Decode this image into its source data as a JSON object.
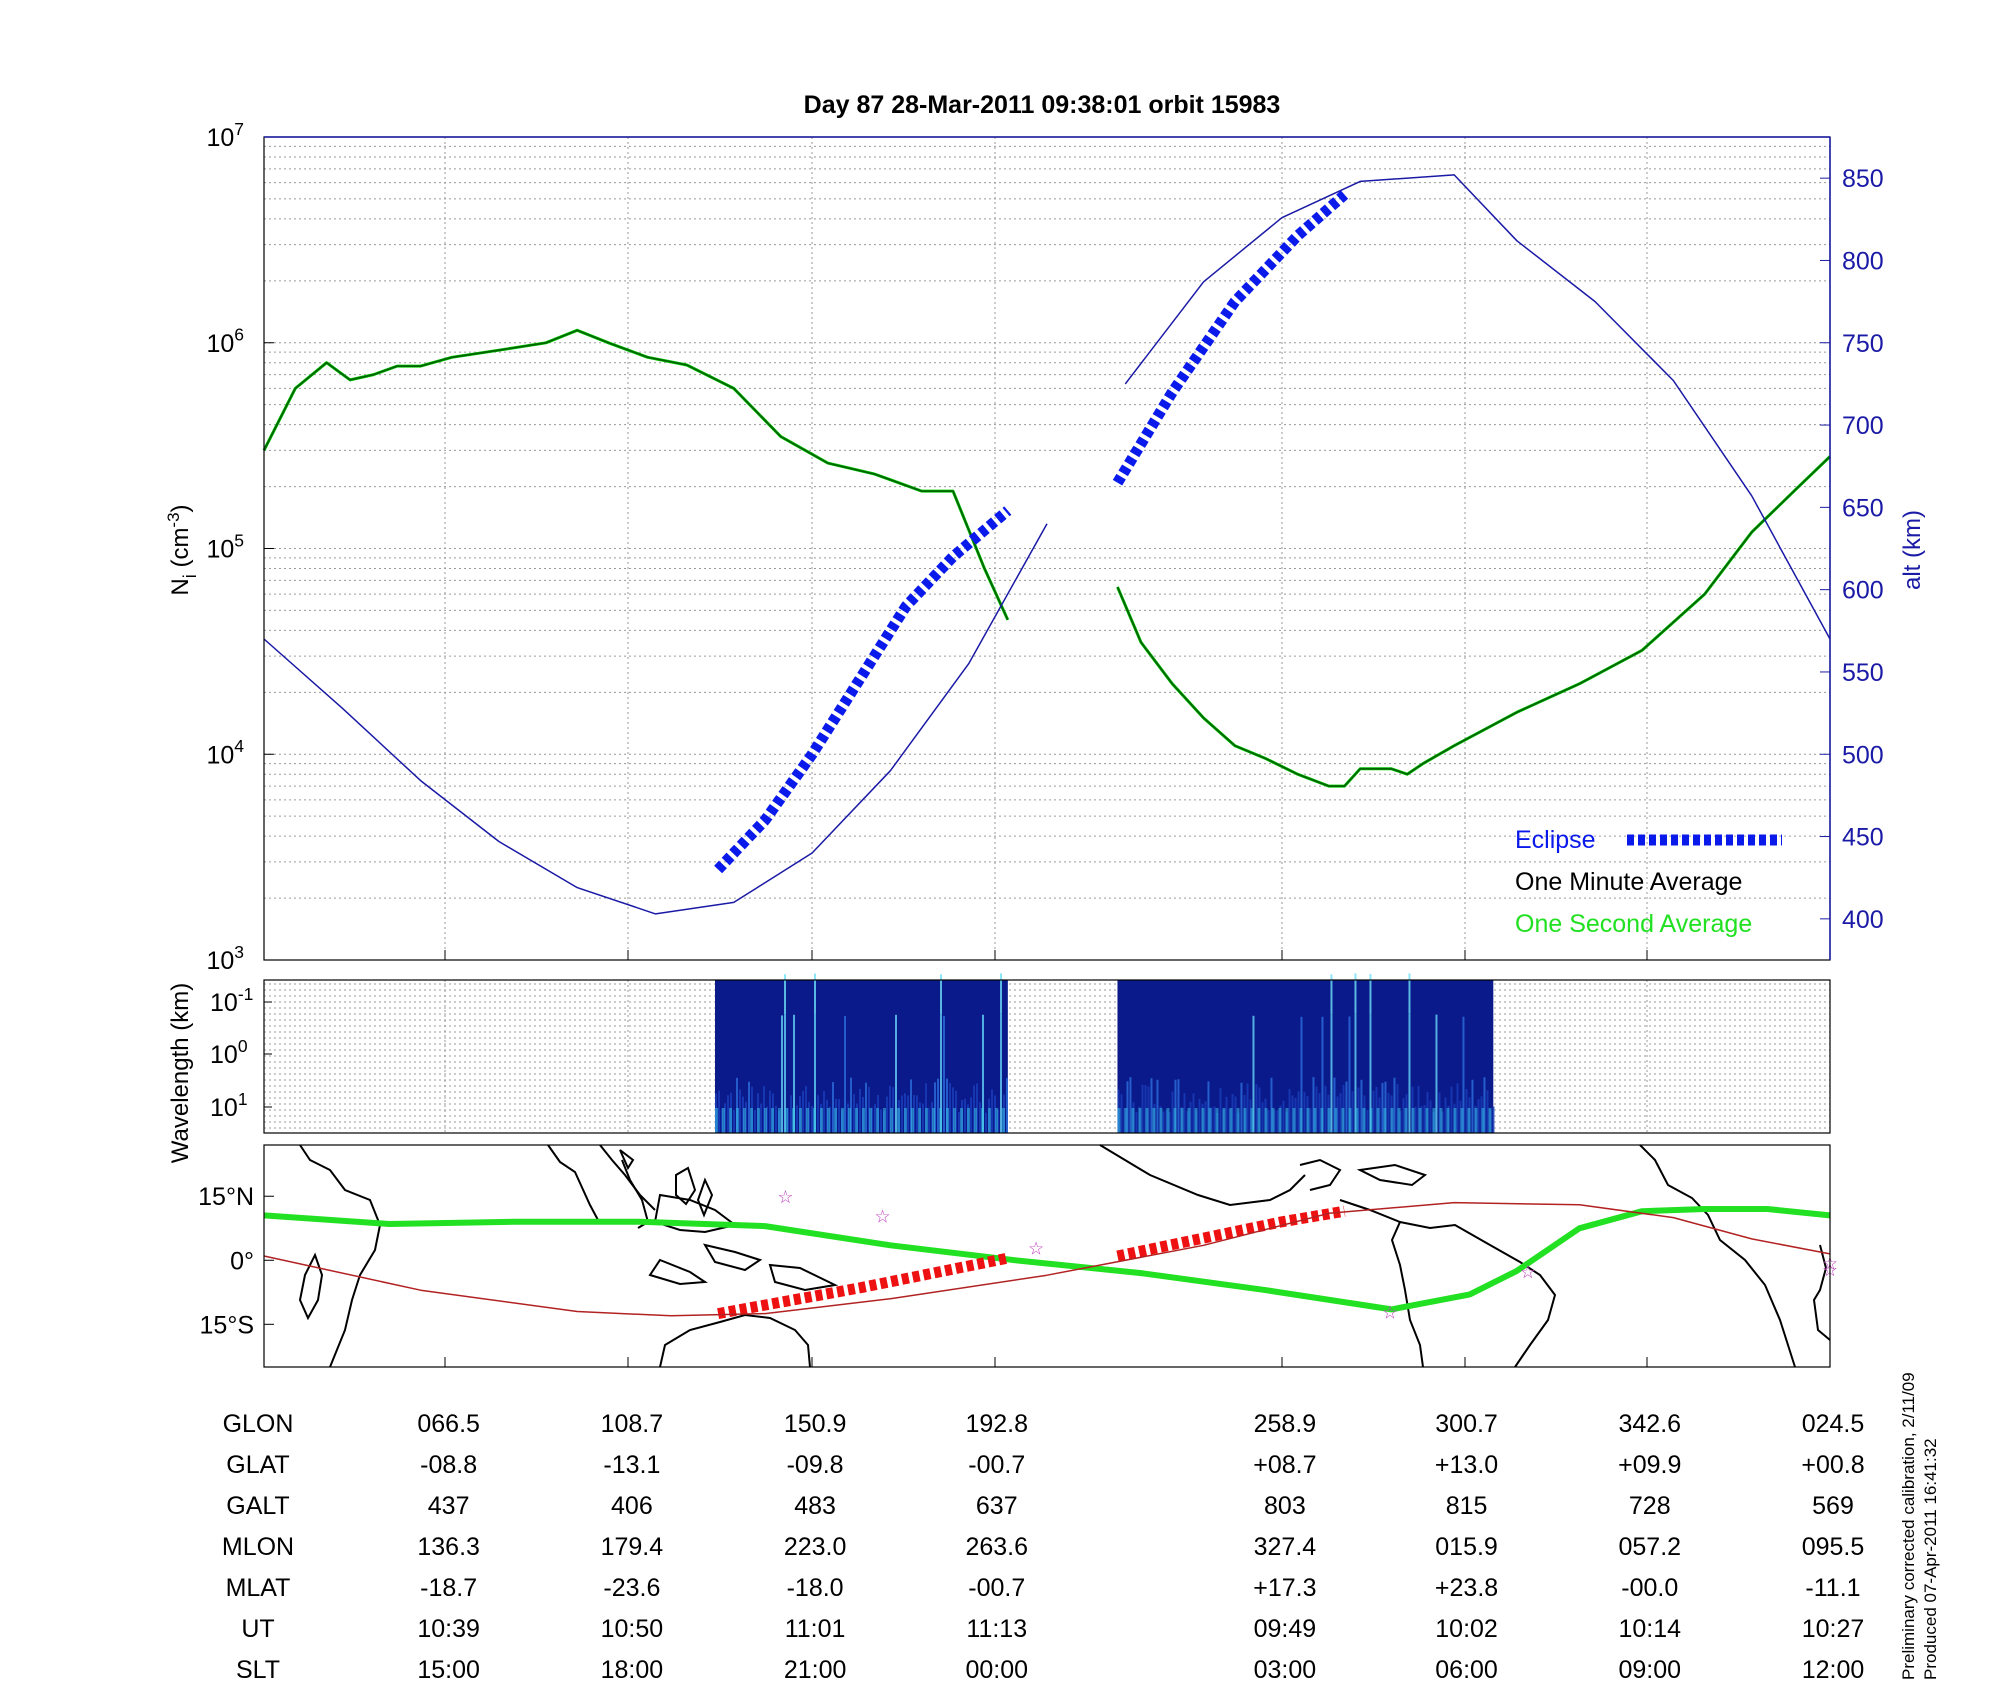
{
  "title": "Day 87  28-Mar-2011 09:38:01   orbit 15983",
  "colors": {
    "density": "#006400",
    "density_raw": "#00cc00",
    "altitude": "#1a1aa6",
    "eclipse": "#0a1aeb",
    "track": "#22e022",
    "eclipse_track": "#ee1111",
    "magnetic_equator": "#b22222",
    "grid": "#808080",
    "map": "#000000",
    "star": "#c040c0",
    "spectrogram_bg": "#0a1a8a"
  },
  "chart_data": [
    {
      "type": "line",
      "panel": "density",
      "title": "Day 87  28-Mar-2011 09:38:01   orbit 15983",
      "ylabel": "N",
      "ylabel_sub": "i",
      "ylabel_unit": " (cm",
      "ylabel_exp": "-3",
      "ylabel_close": ")",
      "yscale": "log",
      "ylim": [
        1000,
        10000000
      ],
      "y_ticks": [
        {
          "base": "10",
          "exp": "3",
          "value": 1000
        },
        {
          "base": "10",
          "exp": "4",
          "value": 10000
        },
        {
          "base": "10",
          "exp": "5",
          "value": 100000
        },
        {
          "base": "10",
          "exp": "6",
          "value": 1000000
        },
        {
          "base": "10",
          "exp": "7",
          "value": 10000000
        }
      ],
      "y2label": "alt (km)",
      "y2lim": [
        375,
        875
      ],
      "y2_ticks": [
        400,
        450,
        500,
        550,
        600,
        650,
        700,
        750,
        800,
        850
      ],
      "grid": true,
      "legend_position": "bottom-right",
      "legend": [
        {
          "label": "Eclipse",
          "style": "eclipse"
        },
        {
          "label": "One Minute Average",
          "style": "black"
        },
        {
          "label": "One Second Average",
          "style": "green"
        }
      ],
      "series": [
        {
          "segment": "density-pass-1",
          "x": [
            0,
            0.02,
            0.04,
            0.055,
            0.07,
            0.085,
            0.1,
            0.12,
            0.15,
            0.18,
            0.2,
            0.22,
            0.245,
            0.27,
            0.3,
            0.33,
            0.36,
            0.39,
            0.42,
            0.44,
            0.46,
            0.475
          ],
          "y": [
            300000,
            600000,
            800000,
            660000,
            700000,
            770000,
            770000,
            850000,
            920000,
            1000000,
            1150000,
            1000000,
            850000,
            780000,
            600000,
            350000,
            260000,
            230000,
            190000,
            190000,
            80000,
            45000
          ]
        },
        {
          "segment": "density-pass-2",
          "x": [
            0.545,
            0.56,
            0.58,
            0.6,
            0.62,
            0.64,
            0.66,
            0.68,
            0.69,
            0.7,
            0.72,
            0.73,
            0.74,
            0.76,
            0.8,
            0.84,
            0.88,
            0.92,
            0.95,
            0.98,
            1.0
          ],
          "y": [
            65000,
            35000,
            22000,
            15000,
            11000,
            9500,
            8000,
            7000,
            7000,
            8500,
            8500,
            8000,
            9000,
            11000,
            16000,
            22000,
            32000,
            60000,
            120000,
            200000,
            280000
          ]
        },
        {
          "segment": "altitude",
          "x": [
            0,
            0.05,
            0.1,
            0.15,
            0.2,
            0.25,
            0.3,
            0.35,
            0.4,
            0.45,
            0.5,
            0.55,
            0.6,
            0.65,
            0.7,
            0.76,
            0.8,
            0.85,
            0.9,
            0.95,
            1.0
          ],
          "y2": [
            570,
            528,
            484,
            447,
            419,
            403,
            410,
            440,
            490,
            555,
            640,
            725,
            787,
            826,
            848,
            852,
            812,
            775,
            727,
            657,
            570
          ]
        },
        {
          "segment": "eclipse-1",
          "x": [
            0.29,
            0.32,
            0.35,
            0.38,
            0.41,
            0.44,
            0.475
          ],
          "y2": [
            430,
            460,
            500,
            545,
            590,
            620,
            648
          ]
        },
        {
          "segment": "eclipse-2",
          "x": [
            0.545,
            0.58,
            0.62,
            0.66,
            0.69
          ],
          "y2": [
            665,
            720,
            775,
            815,
            840
          ]
        }
      ]
    },
    {
      "type": "heatmap",
      "panel": "spectrogram",
      "ylabel": "Wavelength (km)",
      "yscale": "log",
      "y_ticks": [
        {
          "base": "10",
          "exp": "-1"
        },
        {
          "base": "10",
          "exp": "0"
        },
        {
          "base": "10",
          "exp": "1"
        }
      ],
      "data_intervals": [
        [
          0.288,
          0.475
        ],
        [
          0.545,
          0.785
        ]
      ]
    },
    {
      "type": "line",
      "panel": "map",
      "y_ticks": [
        "15°N",
        "0°",
        "15°S"
      ],
      "ylim": [
        -25,
        27
      ],
      "series": [
        {
          "segment": "satellite-track",
          "x": [
            0,
            0.08,
            0.16,
            0.24,
            0.32,
            0.4,
            0.48,
            0.56,
            0.64,
            0.72,
            0.77,
            0.8,
            0.84,
            0.88,
            0.92,
            0.96,
            1.0
          ],
          "lat": [
            10.5,
            8.5,
            9,
            9,
            8,
            3.5,
            0,
            -3,
            -7,
            -11.5,
            -8,
            -2.5,
            7.5,
            11.5,
            12,
            12,
            10.5
          ]
        },
        {
          "segment": "eclipse-track",
          "x": [
            0.29,
            0.38,
            0.475
          ],
          "lat": [
            -12.5,
            -6.5,
            0.5
          ]
        },
        {
          "segment": "eclipse-track-2",
          "x": [
            0.545,
            0.65,
            0.69
          ],
          "lat": [
            1,
            9,
            11.5
          ]
        },
        {
          "segment": "magnetic-equator",
          "x": [
            0,
            0.1,
            0.2,
            0.26,
            0.32,
            0.4,
            0.5,
            0.6,
            0.68,
            0.76,
            0.84,
            0.9,
            0.95,
            1.0
          ],
          "lat": [
            1,
            -7,
            -12,
            -13,
            -12.5,
            -9,
            -3.5,
            3.5,
            11,
            13.5,
            13,
            10,
            5,
            1.5
          ]
        }
      ],
      "stars": [
        {
          "x": 0.333,
          "lat": 15
        },
        {
          "x": 0.395,
          "lat": 10.5
        },
        {
          "x": 0.493,
          "lat": 3
        },
        {
          "x": 0.719,
          "lat": -12
        },
        {
          "x": 0.807,
          "lat": -2.5
        },
        {
          "x": 1.0,
          "lat": -0.5
        },
        {
          "x": 1.0,
          "lat": -2
        }
      ]
    }
  ],
  "table": {
    "row_labels": [
      "GLON",
      "GLAT",
      "GALT",
      "MLON",
      "MLAT",
      "UT",
      "SLT"
    ],
    "columns": [
      {
        "x": 0.116,
        "values": [
          "066.5",
          "-08.8",
          "437",
          "136.3",
          "-18.7",
          "10:39",
          "15:00"
        ]
      },
      {
        "x": 0.233,
        "values": [
          "108.7",
          "-13.1",
          "406",
          "179.4",
          "-23.6",
          "10:50",
          "18:00"
        ]
      },
      {
        "x": 0.35,
        "values": [
          "150.9",
          "-09.8",
          "483",
          "223.0",
          "-18.0",
          "11:01",
          "21:00"
        ]
      },
      {
        "x": 0.466,
        "values": [
          "192.8",
          "-00.7",
          "637",
          "263.6",
          "-00.7",
          "11:13",
          "00:00"
        ]
      },
      {
        "x": 0.65,
        "values": [
          "258.9",
          "+08.7",
          "803",
          "327.4",
          "+17.3",
          "09:49",
          "03:00"
        ]
      },
      {
        "x": 0.766,
        "values": [
          "300.7",
          "+13.0",
          "815",
          "015.9",
          "+23.8",
          "10:02",
          "06:00"
        ]
      },
      {
        "x": 0.883,
        "values": [
          "342.6",
          "+09.9",
          "728",
          "057.2",
          "-00.0",
          "10:14",
          "09:00"
        ]
      },
      {
        "x": 1.0,
        "values": [
          "024.5",
          "+00.8",
          "569",
          "095.5",
          "-11.1",
          "10:27",
          "12:00"
        ]
      }
    ]
  },
  "footer": {
    "calibration": "Preliminary corrected calibration, 2/11/09",
    "produced": "Produced 07-Apr-2011 16:41:32"
  }
}
